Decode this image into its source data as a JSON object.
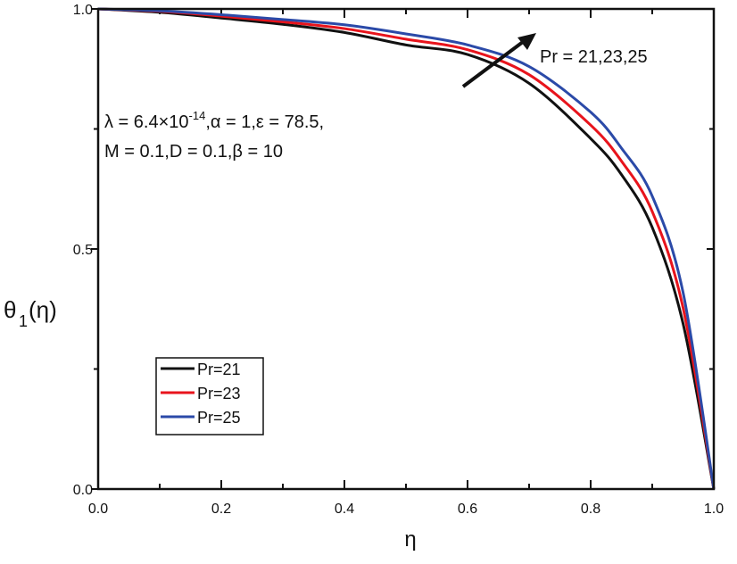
{
  "chart_data": {
    "type": "line",
    "xlabel": "η",
    "ylabel": "θ",
    "ylabel_sub": "1",
    "ylabel_arg": "(η)",
    "xlim": [
      0,
      1
    ],
    "ylim": [
      0,
      1
    ],
    "xticks": [
      "0.0",
      "0.2",
      "0.4",
      "0.6",
      "0.8",
      "1.0"
    ],
    "yticks": [
      "0.0",
      "0.5",
      "1.0"
    ],
    "grid": false,
    "legend_position": "lower-left",
    "x": [
      0,
      0.1,
      0.2,
      0.3,
      0.4,
      0.5,
      0.6,
      0.7,
      0.8,
      0.85,
      0.9,
      0.95,
      1.0
    ],
    "series": [
      {
        "name": "Pr=21",
        "color": "#111111",
        "values": [
          1,
          0.993,
          0.981,
          0.968,
          0.951,
          0.925,
          0.905,
          0.845,
          0.73,
          0.655,
          0.545,
          0.345,
          0
        ]
      },
      {
        "name": "Pr=23",
        "color": "#e8141c",
        "values": [
          1,
          0.995,
          0.985,
          0.973,
          0.959,
          0.937,
          0.915,
          0.863,
          0.758,
          0.683,
          0.578,
          0.378,
          0
        ]
      },
      {
        "name": "Pr=25",
        "color": "#2b4aa8",
        "values": [
          1,
          0.996,
          0.988,
          0.978,
          0.967,
          0.948,
          0.925,
          0.88,
          0.785,
          0.71,
          0.61,
          0.41,
          0
        ]
      }
    ],
    "annotations": {
      "arrow_label": "Pr = 21,23,25",
      "params_line1_pre": "λ = 6.4×10",
      "params_line1_sup": "-14",
      "params_line1_post": ",α = 1,ε = 78.5,",
      "params_line2": "M = 0.1,D = 0.1,β = 10"
    }
  }
}
